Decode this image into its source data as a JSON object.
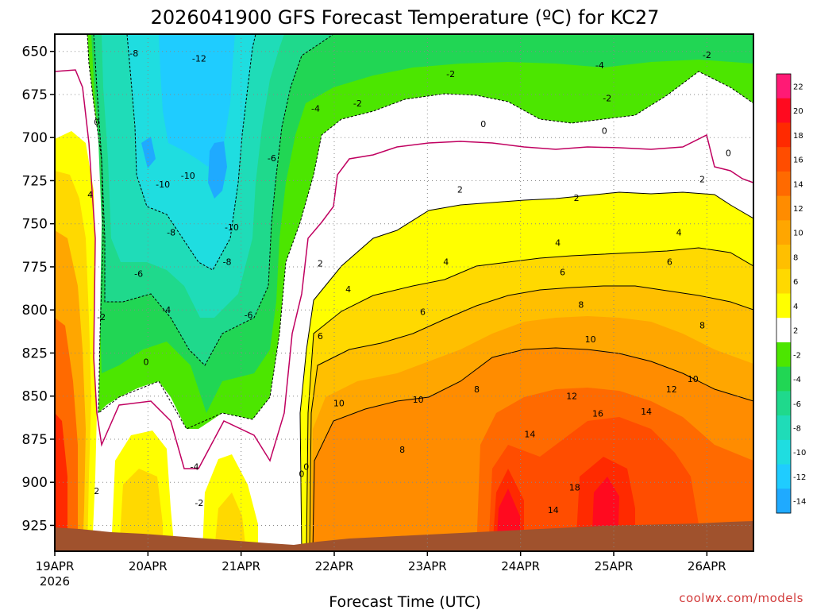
{
  "chart_data": {
    "type": "contour",
    "title": "2026041900 GFS Forecast Temperature (ºC) for KC27",
    "xlabel": "Forecast Time (UTC)",
    "credit": "coolwx.com/models",
    "x_ticks": [
      "19APR",
      "20APR",
      "21APR",
      "22APR",
      "23APR",
      "24APR",
      "25APR",
      "26APR"
    ],
    "x_year": "2026",
    "x_range_days": [
      0,
      7.5
    ],
    "y_ticks": [
      "650",
      "675",
      "700",
      "725",
      "750",
      "775",
      "800",
      "825",
      "850",
      "875",
      "900",
      "925"
    ],
    "y_values": [
      650,
      675,
      700,
      725,
      750,
      775,
      800,
      825,
      850,
      875,
      900,
      925
    ],
    "ylim_hpa": [
      640,
      940
    ],
    "colorbar": {
      "labels": [
        "22",
        "20",
        "18",
        "16",
        "14",
        "12",
        "10",
        "8",
        "6",
        "4",
        "2",
        "-2",
        "-4",
        "-6",
        "-8",
        "-10",
        "-12",
        "-14"
      ],
      "colors": [
        "#ff1a75",
        "#ff0a1f",
        "#ff2a00",
        "#ff4d00",
        "#ff6a00",
        "#ff8c00",
        "#ffa600",
        "#ffbf00",
        "#ffd900",
        "#ffff00",
        "#ffffff",
        "#4ce600",
        "#21d654",
        "#1fd98c",
        "#1fdcb8",
        "#1fdde0",
        "#1fccff",
        "#1faaff"
      ]
    },
    "contour_labels": [
      {
        "v": "-8",
        "d": 0.85,
        "p": 651
      },
      {
        "v": "-12",
        "d": 1.55,
        "p": 654
      },
      {
        "v": "-10",
        "d": 1.43,
        "p": 722
      },
      {
        "v": "-10",
        "d": 1.16,
        "p": 727
      },
      {
        "v": "-8",
        "d": 1.25,
        "p": 755
      },
      {
        "v": "-6",
        "d": 0.9,
        "p": 779
      },
      {
        "v": "-4",
        "d": 1.2,
        "p": 800
      },
      {
        "v": "-10",
        "d": 1.9,
        "p": 752
      },
      {
        "v": "-8",
        "d": 1.85,
        "p": 772
      },
      {
        "v": "-6",
        "d": 2.33,
        "p": 712
      },
      {
        "v": "-6",
        "d": 2.08,
        "p": 803
      },
      {
        "v": "-4",
        "d": 2.8,
        "p": 683
      },
      {
        "v": "-2",
        "d": 3.25,
        "p": 680
      },
      {
        "v": "-2",
        "d": 4.25,
        "p": 663
      },
      {
        "v": "-4",
        "d": 5.85,
        "p": 658
      },
      {
        "v": "-2",
        "d": 5.93,
        "p": 677
      },
      {
        "v": "-2",
        "d": 7.0,
        "p": 652
      },
      {
        "v": "0",
        "d": 0.45,
        "p": 691
      },
      {
        "v": "0",
        "d": 4.6,
        "p": 692
      },
      {
        "v": "0",
        "d": 5.9,
        "p": 696
      },
      {
        "v": "0",
        "d": 7.23,
        "p": 709
      },
      {
        "v": "0",
        "d": 0.98,
        "p": 830
      },
      {
        "v": "0",
        "d": 2.65,
        "p": 895
      },
      {
        "v": "0",
        "d": 2.7,
        "p": 891
      },
      {
        "v": "-2",
        "d": 0.5,
        "p": 804
      },
      {
        "v": "-4",
        "d": 1.5,
        "p": 891
      },
      {
        "v": "-2",
        "d": 1.55,
        "p": 912
      },
      {
        "v": "2",
        "d": 0.45,
        "p": 905
      },
      {
        "v": "4",
        "d": 0.38,
        "p": 733
      },
      {
        "v": "2",
        "d": 4.35,
        "p": 730
      },
      {
        "v": "2",
        "d": 5.6,
        "p": 735
      },
      {
        "v": "2",
        "d": 6.95,
        "p": 724
      },
      {
        "v": "2",
        "d": 2.85,
        "p": 773
      },
      {
        "v": "4",
        "d": 3.15,
        "p": 788
      },
      {
        "v": "4",
        "d": 4.2,
        "p": 772
      },
      {
        "v": "4",
        "d": 5.4,
        "p": 761
      },
      {
        "v": "4",
        "d": 6.7,
        "p": 755
      },
      {
        "v": "6",
        "d": 2.85,
        "p": 815
      },
      {
        "v": "6",
        "d": 3.95,
        "p": 801
      },
      {
        "v": "6",
        "d": 5.45,
        "p": 778
      },
      {
        "v": "6",
        "d": 6.6,
        "p": 772
      },
      {
        "v": "8",
        "d": 5.65,
        "p": 797
      },
      {
        "v": "8",
        "d": 6.95,
        "p": 809
      },
      {
        "v": "8",
        "d": 4.53,
        "p": 846
      },
      {
        "v": "8",
        "d": 3.73,
        "p": 881
      },
      {
        "v": "10",
        "d": 3.05,
        "p": 854
      },
      {
        "v": "10",
        "d": 3.9,
        "p": 852
      },
      {
        "v": "10",
        "d": 5.75,
        "p": 817
      },
      {
        "v": "10",
        "d": 6.85,
        "p": 840
      },
      {
        "v": "12",
        "d": 5.55,
        "p": 850
      },
      {
        "v": "12",
        "d": 6.62,
        "p": 846
      },
      {
        "v": "14",
        "d": 5.1,
        "p": 872
      },
      {
        "v": "14",
        "d": 6.35,
        "p": 859
      },
      {
        "v": "16",
        "d": 5.83,
        "p": 860
      },
      {
        "v": "18",
        "d": 5.58,
        "p": 903
      },
      {
        "v": "14",
        "d": 5.35,
        "p": 916
      }
    ]
  }
}
